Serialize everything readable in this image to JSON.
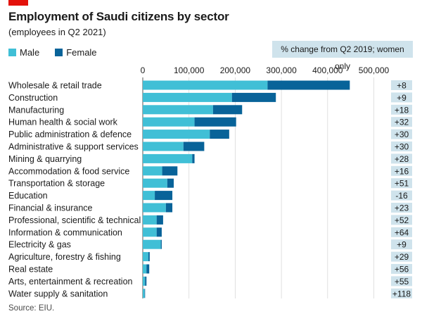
{
  "title": "Employment of Saudi citizens by sector",
  "subtitle": "(employees in Q2 2021)",
  "legend": {
    "male": "Male",
    "female": "Female"
  },
  "pct_header": "% change from Q2 2019; women only",
  "source": "Source: EIU.",
  "colors": {
    "male": "#40bfd6",
    "female": "#086399",
    "grid": "#d9d9d9",
    "pct_box": "#cfe3ec",
    "brand_red": "#e3120b"
  },
  "chart_data": {
    "type": "bar",
    "orientation": "horizontal",
    "stacked": true,
    "title": "Employment of Saudi citizens by sector",
    "subtitle": "(employees in Q2 2021)",
    "xlim": [
      0,
      550000
    ],
    "x_ticks": [
      0,
      100000,
      200000,
      300000,
      400000,
      500000
    ],
    "x_tick_labels": [
      "0",
      "100,000",
      "200,000",
      "300,000",
      "400,000",
      "500,000"
    ],
    "categories": [
      "Wholesale & retail trade",
      "Construction",
      "Manufacturing",
      "Human health & social work",
      "Public administration & defence",
      "Administrative & support services",
      "Mining & quarrying",
      "Accommodation & food service",
      "Transportation & storage",
      "Education",
      "Financial & insurance",
      "Professional, scientific & technical",
      "Information & communication",
      "Electricity & gas",
      "Agriculture, forestry & fishing",
      "Real estate",
      "Arts, entertainment & recreation",
      "Water supply & sanitation"
    ],
    "series": [
      {
        "name": "Male",
        "values": [
          270000,
          193000,
          152000,
          112000,
          145000,
          88000,
          107000,
          42000,
          53000,
          26000,
          50000,
          30000,
          30000,
          39000,
          12000,
          8000,
          5000,
          4000
        ]
      },
      {
        "name": "Female",
        "values": [
          178000,
          95000,
          63000,
          90000,
          42000,
          45000,
          5000,
          33000,
          14000,
          38000,
          14000,
          14000,
          11000,
          2000,
          3000,
          6000,
          3000,
          1000
        ]
      }
    ],
    "pct_change_women": [
      "+8",
      "+9",
      "+18",
      "+32",
      "+30",
      "+30",
      "+28",
      "+16",
      "+51",
      "-16",
      "+23",
      "+52",
      "+64",
      "+9",
      "+29",
      "+56",
      "+55",
      "+118"
    ],
    "pct_change_label": "% change from Q2 2019; women only",
    "legend": [
      "Male",
      "Female"
    ],
    "legend_position": "top-left",
    "grid": true,
    "source": "Source: EIU."
  }
}
